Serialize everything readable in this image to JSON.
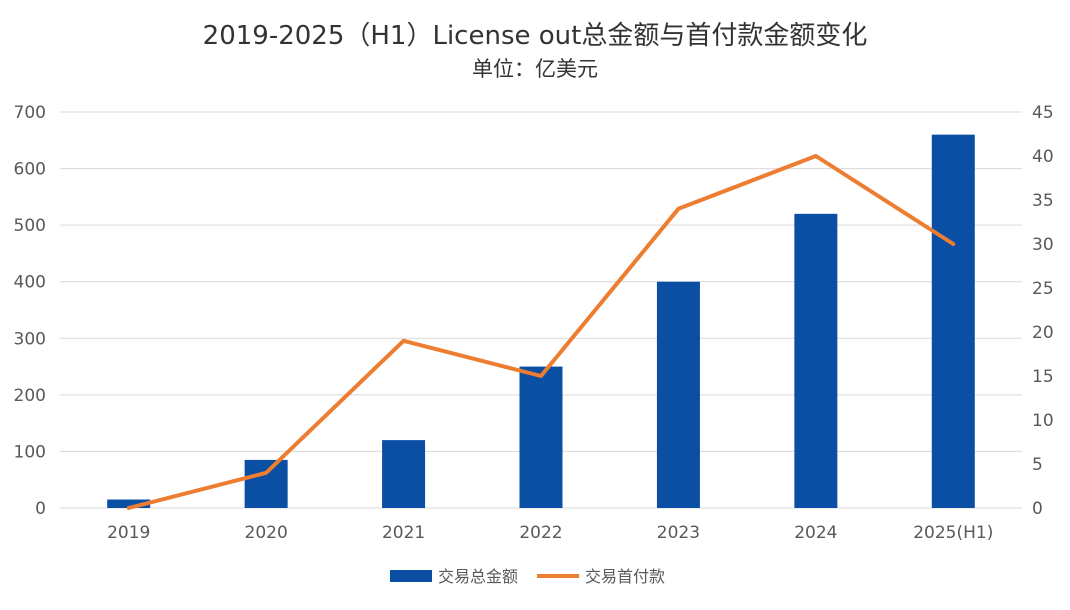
{
  "chart_data": {
    "type": "bar",
    "title": "2019-2025（H1）License out总金额与首付款金额变化",
    "subtitle": "单位：亿美元",
    "categories": [
      "2019",
      "2020",
      "2021",
      "2022",
      "2023",
      "2024",
      "2025(H1)"
    ],
    "series": [
      {
        "name": "交易总金额",
        "type": "bar",
        "axis": "left",
        "color": "#0A4FA3",
        "values": [
          15,
          85,
          120,
          250,
          400,
          520,
          660
        ]
      },
      {
        "name": "交易首付款",
        "type": "line",
        "axis": "right",
        "color": "#ED7D31",
        "values": [
          0,
          4,
          19,
          15,
          34,
          40,
          30
        ]
      }
    ],
    "y_left": {
      "min": 0,
      "max": 700,
      "ticks": [
        "0",
        "100",
        "200",
        "300",
        "400",
        "500",
        "600",
        "700"
      ]
    },
    "y_right": {
      "min": 0,
      "max": 45,
      "ticks": [
        "0",
        "5",
        "10",
        "15",
        "20",
        "25",
        "30",
        "35",
        "40",
        "45"
      ]
    },
    "grid": true,
    "legend": "bottom"
  }
}
